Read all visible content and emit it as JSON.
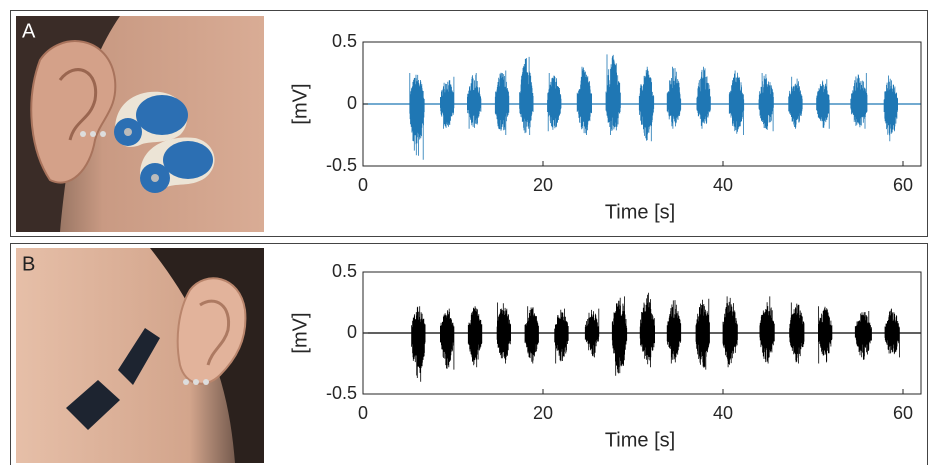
{
  "chart_data": [
    {
      "type": "burst",
      "panel_label": "A",
      "xlabel": "Time [s]",
      "ylabel": "[mV]",
      "xlim": [
        0,
        62
      ],
      "ylim": [
        -0.5,
        0.5
      ],
      "xticks": [
        0,
        20,
        40,
        60
      ],
      "yticks": [
        0.5,
        0,
        -0.5
      ],
      "color": "#1f77b4",
      "start": [
        5.2,
        8.6,
        11.6,
        14.7,
        17.4,
        20.5,
        23.8,
        27.0,
        30.7,
        33.8,
        37.1,
        40.7,
        44.0,
        47.3,
        50.4,
        54.2,
        57.9
      ],
      "end": [
        6.8,
        10.1,
        13.1,
        16.2,
        18.9,
        22.0,
        25.4,
        28.6,
        32.3,
        35.3,
        38.6,
        42.3,
        45.6,
        48.8,
        51.8,
        56.0,
        59.4
      ],
      "high": [
        0.25,
        0.22,
        0.25,
        0.27,
        0.38,
        0.25,
        0.3,
        0.4,
        0.3,
        0.3,
        0.3,
        0.27,
        0.25,
        0.22,
        0.2,
        0.25,
        0.23
      ],
      "low": [
        -0.45,
        -0.2,
        -0.2,
        -0.25,
        -0.25,
        -0.22,
        -0.25,
        -0.25,
        -0.3,
        -0.2,
        -0.2,
        -0.25,
        -0.22,
        -0.2,
        -0.2,
        -0.2,
        -0.3
      ]
    },
    {
      "type": "burst",
      "panel_label": "B",
      "xlabel": "Time [s]",
      "ylabel": "[mV]",
      "xlim": [
        0,
        62
      ],
      "ylim": [
        -0.5,
        0.5
      ],
      "xticks": [
        0,
        20,
        40,
        60
      ],
      "yticks": [
        0.5,
        0,
        -0.5
      ],
      "color": "#000000",
      "start": [
        5.4,
        8.6,
        11.7,
        14.9,
        18.0,
        21.3,
        24.7,
        27.7,
        30.8,
        33.8,
        37.0,
        40.0,
        44.1,
        47.4,
        50.6,
        54.7,
        58.0
      ],
      "end": [
        6.9,
        10.1,
        13.2,
        16.4,
        19.5,
        22.8,
        26.2,
        29.3,
        32.4,
        35.3,
        38.5,
        41.6,
        45.7,
        49.0,
        52.1,
        56.5,
        59.6
      ],
      "high": [
        0.22,
        0.2,
        0.22,
        0.25,
        0.22,
        0.2,
        0.2,
        0.3,
        0.33,
        0.27,
        0.28,
        0.3,
        0.3,
        0.25,
        0.22,
        0.18,
        0.2
      ],
      "low": [
        -0.4,
        -0.3,
        -0.28,
        -0.25,
        -0.25,
        -0.25,
        -0.2,
        -0.35,
        -0.28,
        -0.25,
        -0.3,
        -0.28,
        -0.25,
        -0.25,
        -0.25,
        -0.22,
        -0.2
      ]
    }
  ]
}
